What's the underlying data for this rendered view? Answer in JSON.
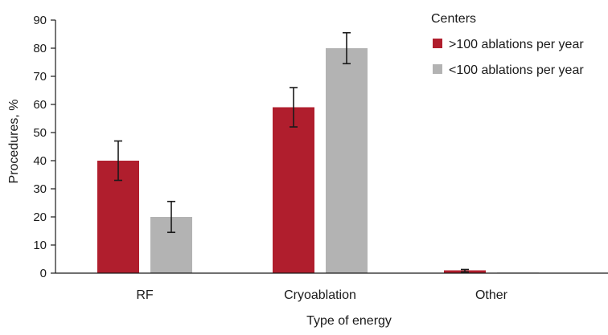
{
  "chart_data": {
    "type": "bar",
    "categories": [
      "RF",
      "Cryoablation",
      "Other"
    ],
    "series": [
      {
        "name": ">100 ablations per year",
        "color": "#b01e2d",
        "values": [
          40,
          59,
          1
        ],
        "error_low": [
          33,
          52,
          0.4
        ],
        "error_high": [
          47,
          66,
          1.3
        ]
      },
      {
        "name": "<100 ablations per year",
        "color": "#b3b3b3",
        "values": [
          20,
          80,
          0.2
        ],
        "error_low": [
          14.5,
          74.5,
          0.2
        ],
        "error_high": [
          25.5,
          85.5,
          0.2
        ]
      }
    ],
    "xlabel": "Type of energy",
    "ylabel": "Procedures, %",
    "ylim": [
      0,
      90
    ],
    "yticks": [
      0,
      10,
      20,
      30,
      40,
      50,
      60,
      70,
      80,
      90
    ],
    "legend_title": "Centers",
    "legend_position": "top-right",
    "grid": false
  }
}
